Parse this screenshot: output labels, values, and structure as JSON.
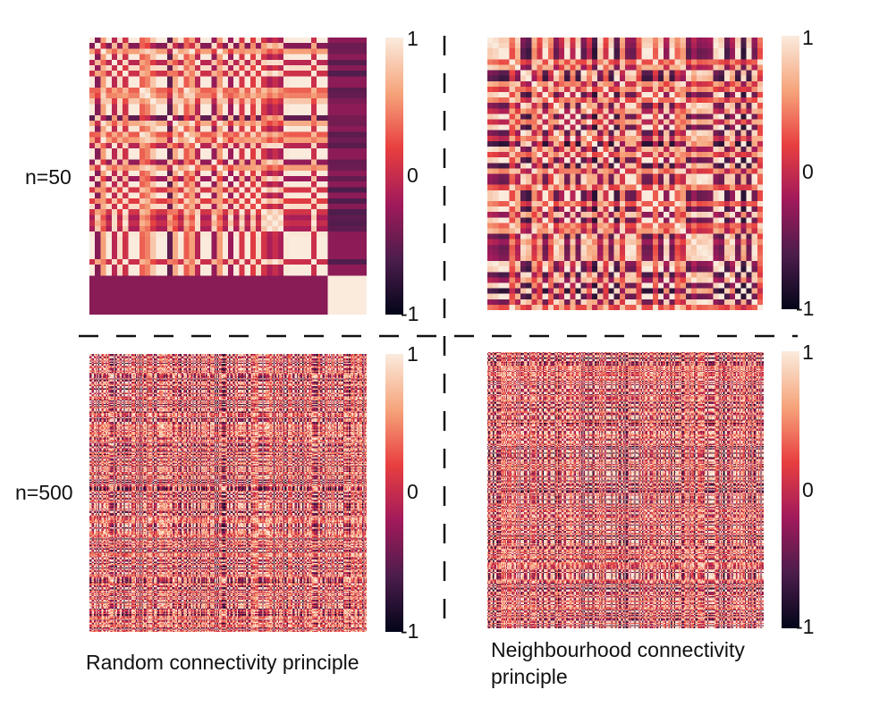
{
  "row_labels": [
    "n=50",
    "n=500"
  ],
  "column_captions": [
    "Random connectivity principle",
    "Neighbourhood connectivity\nprinciple"
  ],
  "colorbar": {
    "ticks": [
      "1",
      "0",
      "-1"
    ],
    "range": [
      -1,
      1
    ]
  },
  "colors": {
    "high": "#faebdd",
    "upper": "#f6a47b",
    "upper_mid": "#e83f3f",
    "mid": "#a11a5b",
    "lower": "#4c1d4b",
    "low": "#03051a",
    "divider": "#111111"
  },
  "chart_data": [
    {
      "type": "heatmap",
      "row_label": "n=50",
      "caption": "Random connectivity principle",
      "size": 50,
      "vmin": -1,
      "vmax": 1
    },
    {
      "type": "heatmap",
      "row_label": "n=50",
      "caption": "Neighbourhood connectivity principle",
      "size": 50,
      "vmin": -1,
      "vmax": 1
    },
    {
      "type": "heatmap",
      "row_label": "n=500",
      "caption": "Random connectivity principle",
      "size": 500,
      "vmin": -1,
      "vmax": 1
    },
    {
      "type": "heatmap",
      "row_label": "n=500",
      "caption": "Neighbourhood connectivity principle",
      "size": 500,
      "vmin": -1,
      "vmax": 1
    }
  ]
}
